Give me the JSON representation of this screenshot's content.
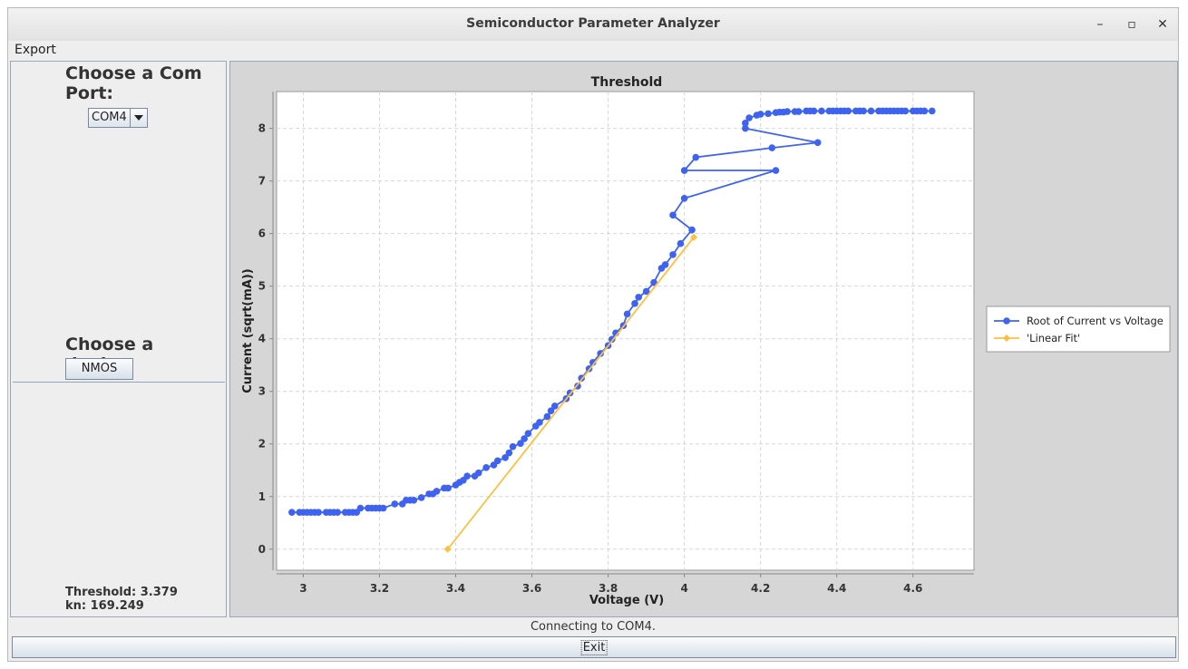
{
  "window": {
    "title": "Semiconductor Parameter Analyzer",
    "minimize": "–",
    "maximize": "▫",
    "close": "✕"
  },
  "menu": {
    "export": "Export"
  },
  "left": {
    "com_heading_line1": "Choose a Com",
    "com_heading_line2": "Port:",
    "com_selected": "COM4",
    "device_heading": "Choose a device:",
    "device_button": "NMOS",
    "threshold_label": "Threshold: 3.379",
    "kn_label": "kn: 169.249"
  },
  "status": {
    "text": "Connecting to COM4."
  },
  "exit": {
    "label": "Exit"
  },
  "chart_data": {
    "type": "line",
    "title": "Threshold",
    "xlabel": "Voltage (V)",
    "ylabel": "Current (sqrt(mA))",
    "xlim": [
      2.93,
      4.76
    ],
    "ylim": [
      -0.4,
      8.7
    ],
    "xticks": [
      "3",
      "3.2",
      "3.4",
      "3.6",
      "3.8",
      "4",
      "4.2",
      "4.4",
      "4.6"
    ],
    "yticks": [
      "0",
      "1",
      "2",
      "3",
      "4",
      "5",
      "6",
      "7",
      "8"
    ],
    "grid": true,
    "legend_position": "right",
    "series": [
      {
        "name": "Root of Current vs Voltage",
        "color": "#3e63f0",
        "marker": "circle",
        "x": [
          2.97,
          2.99,
          3.0,
          3.01,
          3.02,
          3.03,
          3.04,
          3.06,
          3.07,
          3.08,
          3.09,
          3.11,
          3.12,
          3.13,
          3.14,
          3.15,
          3.17,
          3.18,
          3.19,
          3.2,
          3.21,
          3.24,
          3.26,
          3.27,
          3.28,
          3.29,
          3.31,
          3.33,
          3.34,
          3.35,
          3.37,
          3.38,
          3.4,
          3.41,
          3.42,
          3.43,
          3.45,
          3.46,
          3.48,
          3.5,
          3.51,
          3.53,
          3.54,
          3.55,
          3.57,
          3.58,
          3.59,
          3.61,
          3.62,
          3.64,
          3.65,
          3.66,
          3.69,
          3.7,
          3.72,
          3.73,
          3.75,
          3.76,
          3.78,
          3.8,
          3.81,
          3.82,
          3.84,
          3.85,
          3.87,
          3.88,
          3.9,
          3.92,
          3.94,
          3.95,
          3.97,
          3.99,
          4.02,
          3.97,
          4.0,
          4.24,
          4.0,
          4.03,
          4.23,
          4.35,
          4.16,
          4.16,
          4.17,
          4.19,
          4.2,
          4.22,
          4.24,
          4.25,
          4.26,
          4.27,
          4.29,
          4.3,
          4.32,
          4.33,
          4.34,
          4.36,
          4.38,
          4.39,
          4.4,
          4.41,
          4.42,
          4.43,
          4.45,
          4.46,
          4.47,
          4.49,
          4.51,
          4.52,
          4.53,
          4.54,
          4.55,
          4.56,
          4.57,
          4.58,
          4.6,
          4.61,
          4.62,
          4.63,
          4.65
        ],
        "y": [
          0.7,
          0.7,
          0.7,
          0.7,
          0.7,
          0.7,
          0.7,
          0.7,
          0.7,
          0.7,
          0.7,
          0.7,
          0.7,
          0.7,
          0.7,
          0.78,
          0.78,
          0.78,
          0.78,
          0.78,
          0.78,
          0.86,
          0.86,
          0.93,
          0.93,
          0.93,
          0.98,
          1.05,
          1.05,
          1.1,
          1.16,
          1.16,
          1.22,
          1.27,
          1.31,
          1.39,
          1.39,
          1.45,
          1.55,
          1.6,
          1.68,
          1.74,
          1.83,
          1.95,
          2.01,
          2.1,
          2.2,
          2.34,
          2.41,
          2.52,
          2.63,
          2.72,
          2.86,
          2.97,
          3.1,
          3.25,
          3.43,
          3.55,
          3.72,
          3.87,
          3.99,
          4.11,
          4.25,
          4.47,
          4.67,
          4.79,
          4.9,
          5.07,
          5.34,
          5.41,
          5.6,
          5.81,
          6.07,
          6.35,
          6.67,
          7.2,
          7.2,
          7.45,
          7.63,
          7.73,
          8.0,
          8.1,
          8.2,
          8.25,
          8.27,
          8.28,
          8.3,
          8.31,
          8.31,
          8.32,
          8.32,
          8.32,
          8.33,
          8.33,
          8.33,
          8.33,
          8.33,
          8.33,
          8.33,
          8.33,
          8.33,
          8.33,
          8.33,
          8.33,
          8.33,
          8.33,
          8.33,
          8.33,
          8.33,
          8.33,
          8.33,
          8.33,
          8.33,
          8.33,
          8.33,
          8.33,
          8.33,
          8.33,
          8.33
        ]
      },
      {
        "name": "'Linear Fit'",
        "color": "#ffbf40",
        "marker": "diamond",
        "x": [
          3.379,
          4.025
        ],
        "y": [
          0.0,
          5.93
        ]
      }
    ]
  }
}
